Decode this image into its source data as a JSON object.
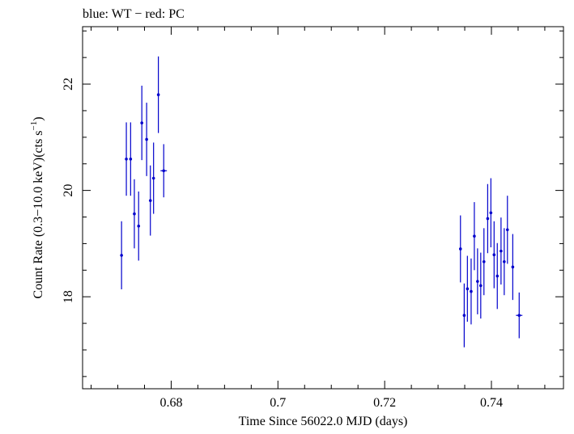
{
  "chart_data": {
    "type": "scatter",
    "title": "blue: WT − red: PC",
    "xlabel": "Time Since 56022.0 MJD (days)",
    "ylabel_main": "Count Rate (0.3−10.0 keV)(cts s",
    "ylabel_sup": "−1",
    "ylabel_end": ")",
    "xlim": [
      0.6634,
      0.7535
    ],
    "ylim": [
      16.27,
      23.08
    ],
    "xticks": [
      0.68,
      0.7,
      0.72,
      0.74
    ],
    "xtick_labels": [
      "0.68",
      "0.7",
      "0.72",
      "0.74"
    ],
    "yticks": [
      18,
      20,
      22
    ],
    "ytick_labels": [
      "18",
      "20",
      "22"
    ],
    "grid": false,
    "series": [
      {
        "color": "#0000cc",
        "points": [
          {
            "x": 0.6707,
            "y": 18.78,
            "err": 0.64,
            "xerr": 0.0002
          },
          {
            "x": 0.6716,
            "y": 20.59,
            "err": 0.69,
            "xerr": 0.0002
          },
          {
            "x": 0.6724,
            "y": 20.59,
            "err": 0.69,
            "xerr": 0.0002
          },
          {
            "x": 0.6731,
            "y": 19.56,
            "err": 0.65,
            "xerr": 0.0002
          },
          {
            "x": 0.6739,
            "y": 19.33,
            "err": 0.65,
            "xerr": 0.0002
          },
          {
            "x": 0.6745,
            "y": 21.27,
            "err": 0.7,
            "xerr": 0.0002
          },
          {
            "x": 0.6754,
            "y": 20.96,
            "err": 0.69,
            "xerr": 0.0002
          },
          {
            "x": 0.6761,
            "y": 19.81,
            "err": 0.66,
            "xerr": 0.0002
          },
          {
            "x": 0.6767,
            "y": 20.23,
            "err": 0.67,
            "xerr": 0.0002
          },
          {
            "x": 0.6776,
            "y": 21.8,
            "err": 0.72,
            "xerr": 0.0002
          },
          {
            "x": 0.6786,
            "y": 20.37,
            "err": 0.5,
            "xerr": 0.0006
          },
          {
            "x": 0.7342,
            "y": 18.9,
            "err": 0.63,
            "xerr": 0.0002
          },
          {
            "x": 0.7349,
            "y": 17.65,
            "err": 0.6,
            "xerr": 0.0002
          },
          {
            "x": 0.7355,
            "y": 18.15,
            "err": 0.62,
            "xerr": 0.0002
          },
          {
            "x": 0.7362,
            "y": 18.1,
            "err": 0.62,
            "xerr": 0.0002
          },
          {
            "x": 0.7368,
            "y": 19.14,
            "err": 0.64,
            "xerr": 0.0002
          },
          {
            "x": 0.7374,
            "y": 18.29,
            "err": 0.62,
            "xerr": 0.0002
          },
          {
            "x": 0.738,
            "y": 18.21,
            "err": 0.62,
            "xerr": 0.0002
          },
          {
            "x": 0.7386,
            "y": 18.66,
            "err": 0.63,
            "xerr": 0.0002
          },
          {
            "x": 0.7393,
            "y": 19.47,
            "err": 0.65,
            "xerr": 0.0002
          },
          {
            "x": 0.7399,
            "y": 19.58,
            "err": 0.65,
            "xerr": 0.0002
          },
          {
            "x": 0.7405,
            "y": 18.79,
            "err": 0.63,
            "xerr": 0.0002
          },
          {
            "x": 0.7411,
            "y": 18.39,
            "err": 0.62,
            "xerr": 0.0002
          },
          {
            "x": 0.7418,
            "y": 18.86,
            "err": 0.63,
            "xerr": 0.0002
          },
          {
            "x": 0.7424,
            "y": 18.66,
            "err": 0.63,
            "xerr": 0.0002
          },
          {
            "x": 0.743,
            "y": 19.26,
            "err": 0.64,
            "xerr": 0.0002
          },
          {
            "x": 0.744,
            "y": 18.56,
            "err": 0.62,
            "xerr": 0.0002
          },
          {
            "x": 0.7452,
            "y": 17.65,
            "err": 0.43,
            "xerr": 0.0006
          }
        ]
      }
    ]
  }
}
